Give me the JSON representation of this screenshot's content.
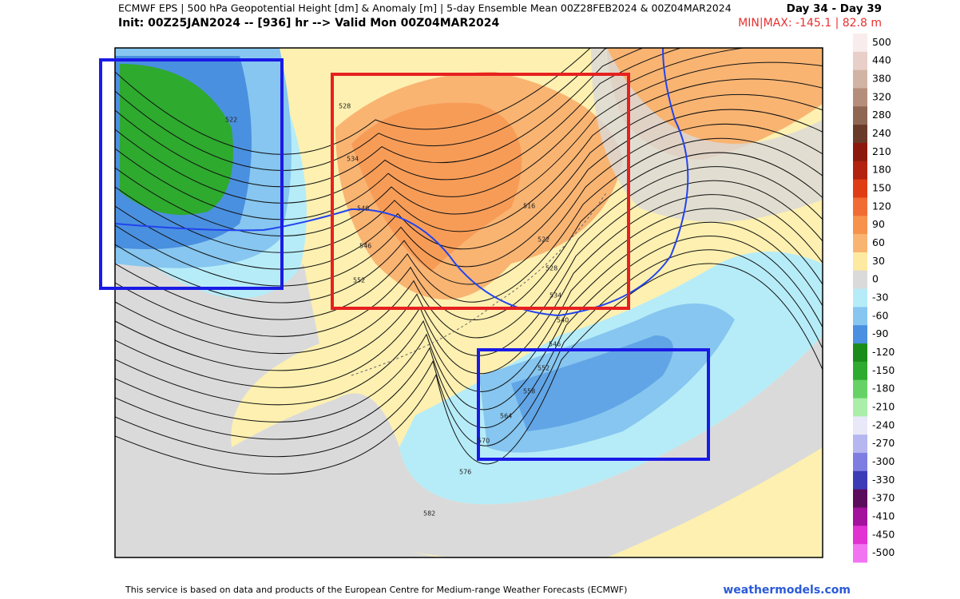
{
  "header": {
    "title": "ECMWF EPS | 500 hPa Geopotential Height [dm] & Anomaly [m] | 5-day Ensemble Mean 00Z28FEB2024 & 00Z04MAR2024",
    "init": "Init: 00Z25JAN2024 -- [936] hr --> Valid Mon 00Z04MAR2024",
    "day_range": "Day 34 - Day 39",
    "minmax": "MIN|MAX: -145.1 | 82.8 m"
  },
  "colorbar": {
    "labels": [
      500,
      440,
      380,
      320,
      280,
      240,
      210,
      180,
      150,
      120,
      90,
      60,
      30,
      0,
      -30,
      -60,
      -90,
      -120,
      -150,
      -180,
      -210,
      -240,
      -270,
      -300,
      -330,
      -370,
      -410,
      -450,
      -500
    ],
    "colors": [
      "#f8ecec",
      "#e8d0c8",
      "#d2b4a4",
      "#b48e7a",
      "#8e6652",
      "#6a3a28",
      "#8c1a0c",
      "#b2220e",
      "#e03c14",
      "#f06c32",
      "#f6924c",
      "#f9b472",
      "#fdeaa0",
      "#dadada",
      "#b6ecf8",
      "#86c6f0",
      "#4a90e0",
      "#1a8c1a",
      "#2eaa2e",
      "#66d266",
      "#aaeeaa",
      "#e8e8f8",
      "#b6b6f0",
      "#7e7ee2",
      "#3c3cb6",
      "#5c0c5c",
      "#a2129c",
      "#e232d2",
      "#f274f2"
    ]
  },
  "contours": {
    "labels": [
      "528",
      "534",
      "540",
      "546",
      "552",
      "522",
      "516",
      "522",
      "528",
      "534",
      "540",
      "546",
      "552",
      "558",
      "564",
      "570",
      "576",
      "582"
    ]
  },
  "footer": {
    "text": "This service is based on data and products of the European Centre for Medium-range Weather Forecasts (ECMWF)",
    "site": "weathermodels.com"
  }
}
